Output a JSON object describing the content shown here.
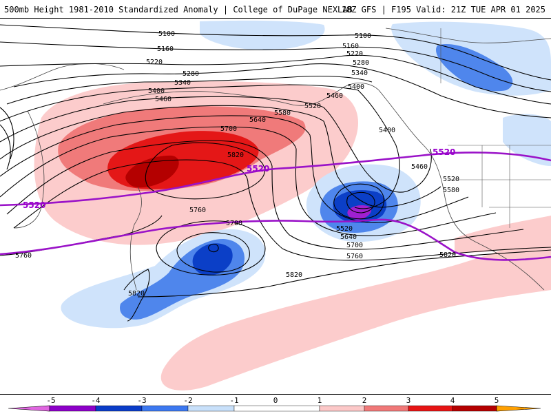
{
  "header": {
    "title_left": "500mb Height 1981-2010 Standardized Anomaly | College of DuPage NEXLAB",
    "title_right": "18Z GFS | F195 Valid: 21Z TUE APR 01 2025"
  },
  "contours": {
    "labels": [
      "5100",
      "5160",
      "5220",
      "5280",
      "5340",
      "5400",
      "5460",
      "5520",
      "5580",
      "5640",
      "5700",
      "5760",
      "5820"
    ],
    "highlight_label": "5520"
  },
  "colorbar": {
    "ticks": [
      "-5",
      "-4",
      "-3",
      "-2",
      "-1",
      "0",
      "1",
      "2",
      "3",
      "4",
      "5"
    ],
    "colors": {
      "below_-4": "#e066e0",
      "-4_to_-3": "#8c00c8",
      "-3_to_-2": "#0a3cc8",
      "-2_to_-1": "#3c78f0",
      "-1_to_0": "#c8e0fa",
      "0_to_1": "#ffffff",
      "1_to_2": "#fcc8c8",
      "2_to_3": "#f07878",
      "3_to_4": "#e61414",
      "4_to_5": "#b40000",
      "above_5": "#ffa000"
    }
  },
  "colors": {
    "neg1": "#cfe3fb",
    "neg2": "#4f86ec",
    "neg3": "#0b3fc7",
    "neg4": "#a020d0",
    "pos1": "#fccccc",
    "pos2": "#f07a7a",
    "pos3": "#e41717",
    "pos4": "#b40000",
    "highlight_contour": "#9a12c8",
    "contour": "#000000",
    "coast": "#444444"
  }
}
